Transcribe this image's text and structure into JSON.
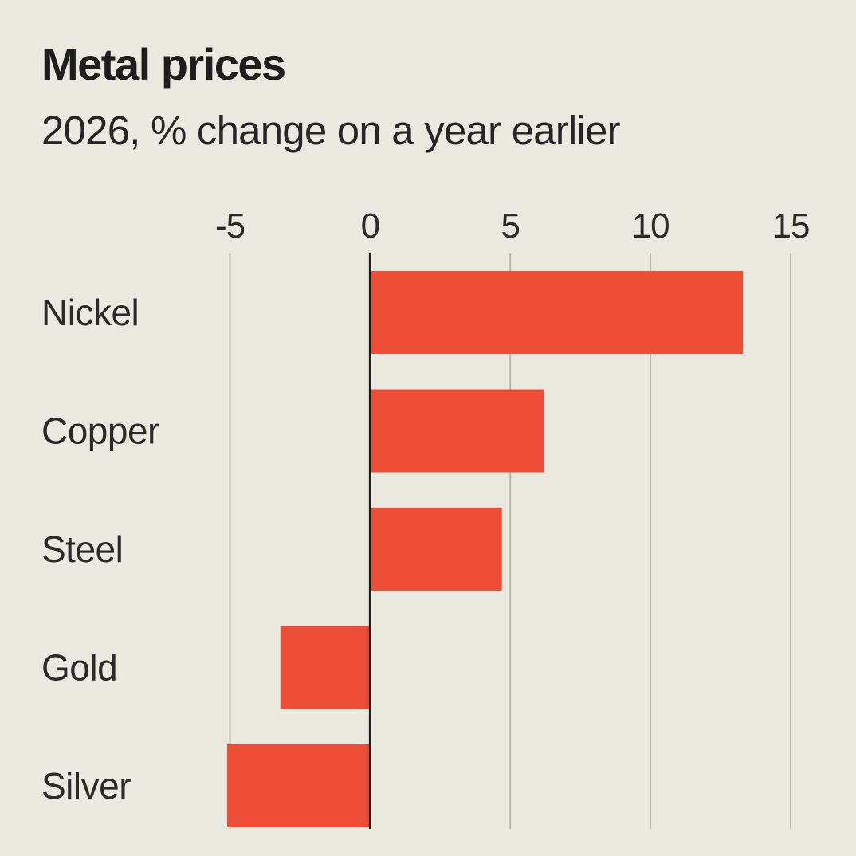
{
  "chart_data": {
    "type": "bar",
    "orientation": "horizontal",
    "title": "Metal prices",
    "subtitle": "2026, % change on a year earlier",
    "xlabel": "",
    "ylabel": "",
    "categories": [
      "Nickel",
      "Copper",
      "Steel",
      "Gold",
      "Silver"
    ],
    "values": [
      13.3,
      6.2,
      4.7,
      -3.2,
      -5.1
    ],
    "xlim": [
      -5,
      15
    ],
    "xticks": [
      -5,
      0,
      5,
      10,
      15
    ],
    "xtick_labels": [
      "-5",
      "0",
      "5",
      "10",
      "15"
    ],
    "xaxis_position": "top",
    "grid": true,
    "legend": "none",
    "colors": {
      "bar": "#ef4e36",
      "background": "#e9e9df",
      "grid": "#b8b8ae",
      "zero_line": "#1a1a1a"
    }
  }
}
